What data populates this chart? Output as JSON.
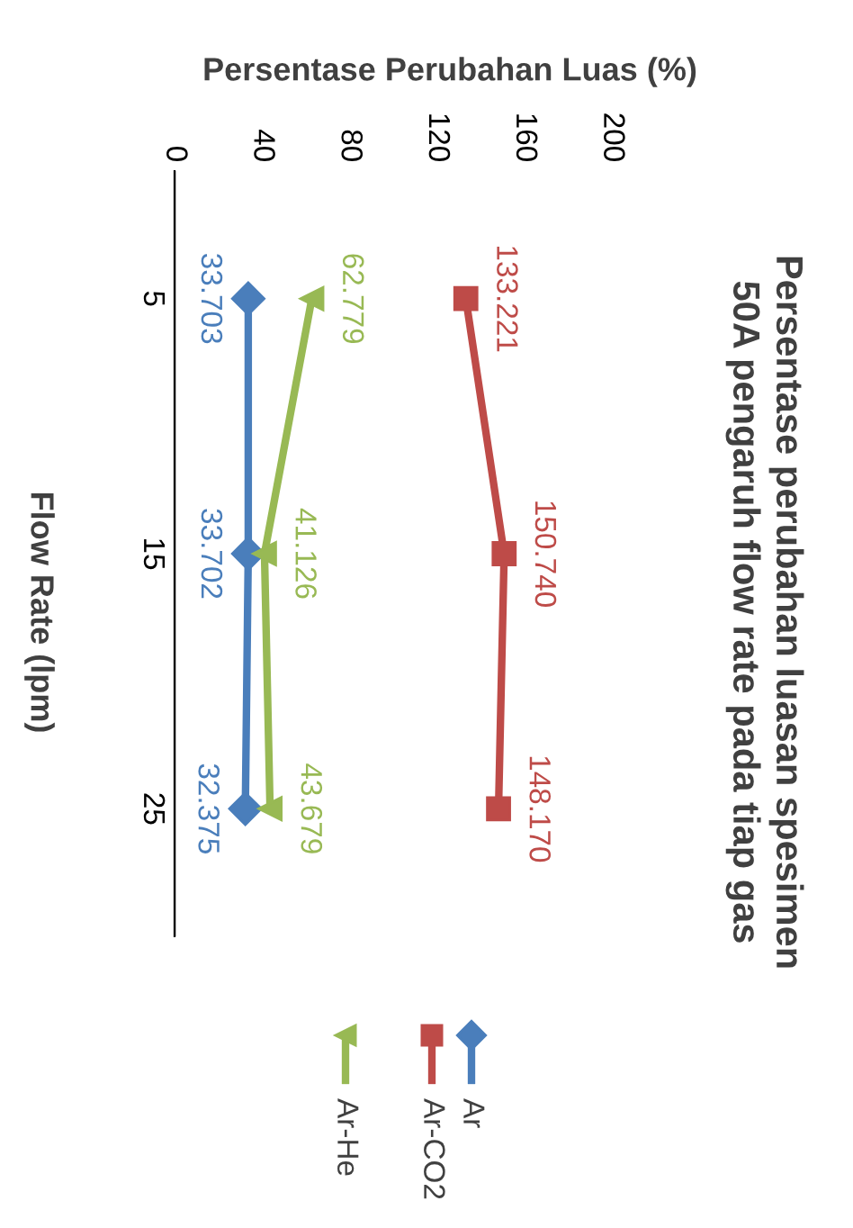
{
  "chart_data": {
    "type": "line",
    "orientation": "horizontal",
    "title": "Persentase perubahan luasan spesimen\n50A pengaruh flow rate pada tiap gas",
    "ylabel": "Flow Rate (lpm)",
    "xlabel": "Persentase Perubahan Luas (%)",
    "categories": [
      "5",
      "15",
      "25"
    ],
    "series": [
      {
        "name": "Ar",
        "color": "#4a7ebb",
        "marker": "diamond",
        "values": [
          33.703,
          33.702,
          32.375
        ],
        "value_labels": [
          "33.703",
          "33.702",
          "32.375"
        ]
      },
      {
        "name": "Ar-CO2",
        "color": "#be4b48",
        "marker": "square",
        "values": [
          133.221,
          150.74,
          148.17
        ],
        "value_labels": [
          "133.221",
          "150.740",
          "148.170"
        ]
      },
      {
        "name": "Ar-He",
        "color": "#98b954",
        "marker": "triangle",
        "values": [
          62.779,
          41.126,
          43.679
        ],
        "value_labels": [
          "62.779",
          "41.126",
          "43.679"
        ]
      }
    ],
    "xlim": [
      0,
      200
    ],
    "xticks": [
      0,
      40,
      80,
      120,
      160,
      200
    ],
    "grid": false,
    "legend": "bottom",
    "line_style": "solid"
  }
}
